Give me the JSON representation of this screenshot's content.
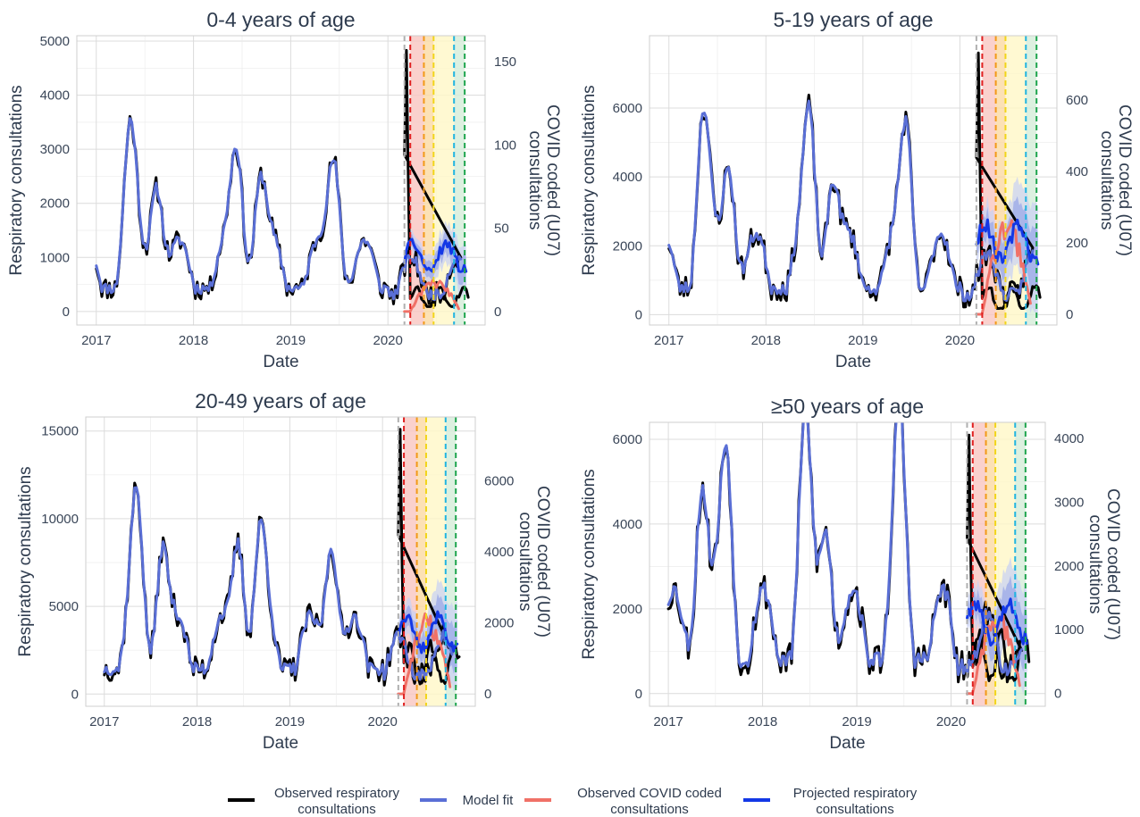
{
  "legend": {
    "items": [
      {
        "label_lines": [
          "Observed respiratory",
          "consultations"
        ],
        "color": "#000000"
      },
      {
        "label_lines": [
          "Model fit"
        ],
        "color": "#5a6fd6"
      },
      {
        "label_lines": [
          "Observed COVID coded",
          "consultations"
        ],
        "color": "#f07167"
      },
      {
        "label_lines": [
          "Projected respiratory",
          "consultations"
        ],
        "color": "#1338e6"
      }
    ]
  },
  "colors": {
    "observed": "#000000",
    "model_fit": "#5a6fd6",
    "covid": "#f07167",
    "projected": "#1338e6",
    "ribbon_outer": "#c9d1f3",
    "ribbon_inner": "#9aa8e8",
    "shade_red": "#f9c6c1",
    "shade_orange": "#fbd9a3",
    "shade_yellow": "#fff8c7",
    "shade_green": "#d4ecd8",
    "vline_grey": "#b0b0b0",
    "vline_red": "#e02020",
    "vline_orange": "#f29a18",
    "vline_yellow": "#f2d51a",
    "vline_cyan": "#21b5e0",
    "vline_green": "#1ea54e"
  },
  "chart_data": [
    {
      "type": "line",
      "title": "0-4 years of age",
      "xlabel": "Date",
      "ylabel": "Respiratory consultations",
      "y2label_lines": [
        "COVID coded (U07)",
        "consultations"
      ],
      "xticks": [
        "2017",
        "2018",
        "2019",
        "2020"
      ],
      "xlim": [
        2016.8,
        2021.0
      ],
      "ylim": [
        -250,
        5100
      ],
      "yticks": [
        "0",
        "1000",
        "2000",
        "3000",
        "4000",
        "5000"
      ],
      "y2lim": [
        -8.1,
        165.6
      ],
      "y2ticks": [
        "0",
        "50",
        "100",
        "150"
      ],
      "base_scale": 2400,
      "peak_y": 4830,
      "drop_y": 300,
      "projected_start": 1000,
      "projected_ribbon": 350,
      "covid_max": 20,
      "seed": 11
    },
    {
      "type": "line",
      "title": "5-19 years of age",
      "xlabel": "Date",
      "ylabel": "Respiratory consultations",
      "y2label_lines": [
        "COVID coded (U07)",
        "consultations"
      ],
      "xticks": [
        "2017",
        "2018",
        "2019",
        "2020"
      ],
      "xlim": [
        2016.8,
        2021.0
      ],
      "ylim": [
        -300,
        8100
      ],
      "yticks": [
        "0",
        "2000",
        "4000",
        "6000"
      ],
      "y2lim": [
        -30,
        780
      ],
      "y2ticks": [
        "0",
        "200",
        "400",
        "600"
      ],
      "base_scale": 4300,
      "peak_y": 7600,
      "drop_y": 600,
      "projected_start": 2100,
      "projected_ribbon": 1200,
      "covid_max": 290,
      "seed": 23
    },
    {
      "type": "line",
      "title": "20-49 years of age",
      "xlabel": "Date",
      "ylabel": "Respiratory consultations",
      "y2label_lines": [
        "COVID coded (U07)",
        "consultations"
      ],
      "xticks": [
        "2017",
        "2018",
        "2019",
        "2020"
      ],
      "xlim": [
        2016.8,
        2021.0
      ],
      "ylim": [
        -700,
        15800
      ],
      "yticks": [
        "0",
        "5000",
        "10000",
        "15000"
      ],
      "y2lim": [
        -350,
        7800
      ],
      "y2ticks": [
        "0",
        "2000",
        "4000",
        "6000"
      ],
      "base_scale": 8000,
      "peak_y": 15100,
      "drop_y": 2000,
      "projected_start": 3500,
      "projected_ribbon": 1800,
      "covid_max": 2300,
      "seed": 37
    },
    {
      "type": "line",
      "title": "≥50 years of age",
      "xlabel": "Date",
      "ylabel": "Respiratory consultations",
      "y2label_lines": [
        "COVID coded (U07)",
        "consultations"
      ],
      "xticks": [
        "2017",
        "2018",
        "2019",
        "2020"
      ],
      "xlim": [
        2016.8,
        2021.0
      ],
      "ylim": [
        -300,
        6400
      ],
      "yticks": [
        "0",
        "2000",
        "4000",
        "6000"
      ],
      "y2lim": [
        -200,
        4250
      ],
      "y2ticks": [
        "0",
        "1000",
        "2000",
        "3000",
        "4000"
      ],
      "base_scale": 4500,
      "peak_y": 6100,
      "drop_y": 1000,
      "projected_start": 1700,
      "projected_ribbon": 900,
      "covid_max": 1350,
      "seed": 53
    }
  ]
}
